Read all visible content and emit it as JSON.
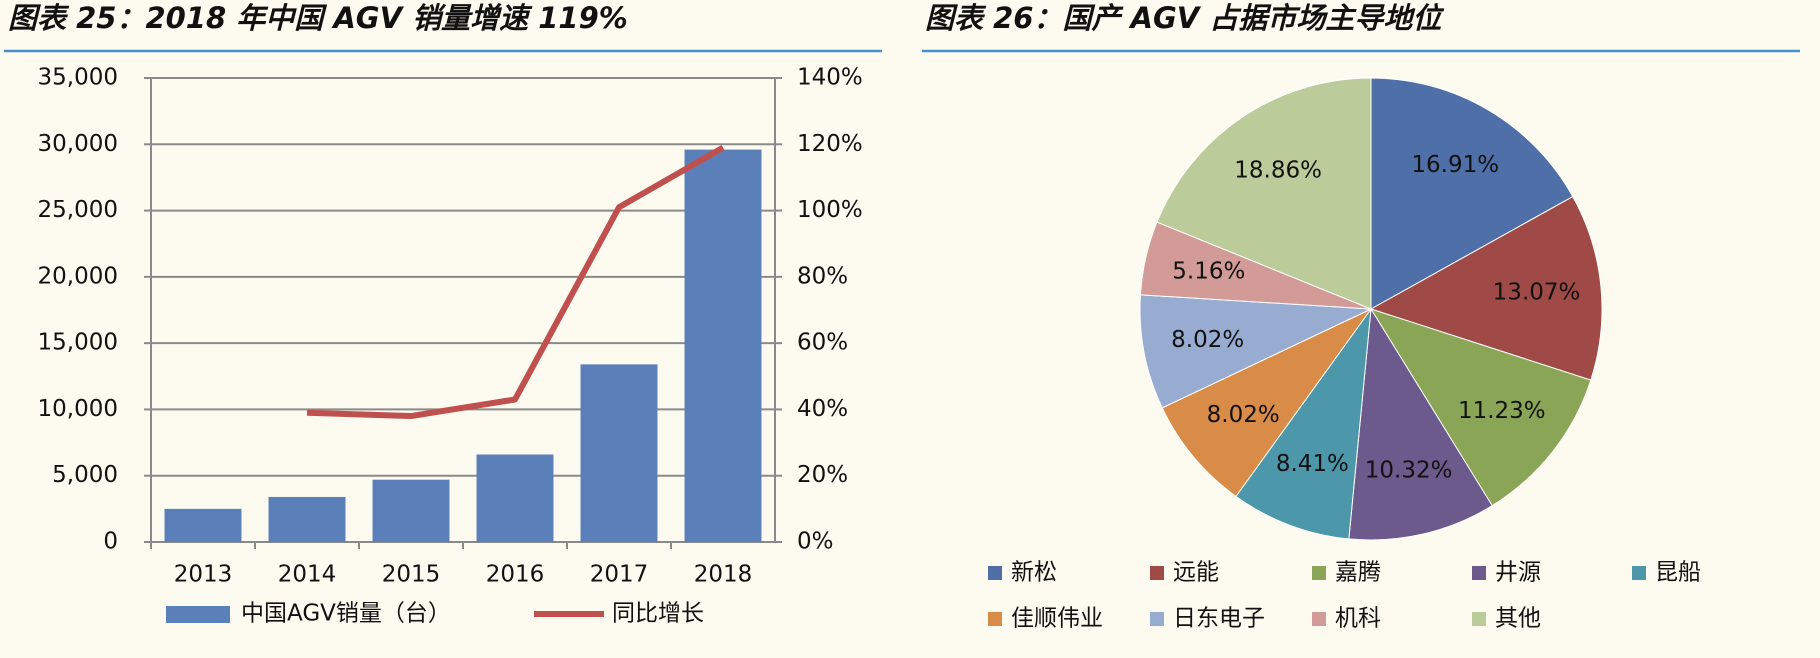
{
  "chart_data": [
    {
      "type": "bar_line",
      "title": "图表 25：2018 年中国 AGV 销量增速 119%",
      "categories": [
        "2013",
        "2014",
        "2015",
        "2016",
        "2017",
        "2018"
      ],
      "series": [
        {
          "name": "中国AGV销量（台）",
          "color": "#5b80b9",
          "type": "bar",
          "values": [
            2500,
            3400,
            4700,
            6600,
            13400,
            29600
          ]
        },
        {
          "name": "同比增长",
          "color": "#c0504d",
          "type": "line",
          "axis": "y2",
          "values": [
            null,
            39,
            38,
            43,
            101,
            119
          ]
        }
      ],
      "ylim": [
        0,
        35000
      ],
      "yticks": [
        0,
        {
          "value": 5000,
          "label": "5,000"
        },
        {
          "value": 10000,
          "label": "10,000"
        },
        {
          "value": 15000,
          "label": "15,000"
        },
        {
          "value": 20000,
          "label": "20,000"
        },
        {
          "value": 25000,
          "label": "25,000"
        },
        {
          "value": 30000,
          "label": "30,000"
        },
        {
          "value": 35000,
          "label": "35,000"
        }
      ],
      "y2lim": [
        0,
        140
      ],
      "y2ticks": [
        {
          "value": 0,
          "label": "0%"
        },
        {
          "value": 20,
          "label": "20%"
        },
        {
          "value": 40,
          "label": "40%"
        },
        {
          "value": 60,
          "label": "60%"
        },
        {
          "value": 80,
          "label": "80%"
        },
        {
          "value": 100,
          "label": "100%"
        },
        {
          "value": 120,
          "label": "120%"
        },
        {
          "value": 140,
          "label": "140%"
        }
      ],
      "grid": true,
      "legend": "bottom"
    },
    {
      "type": "pie",
      "title": "图表 26：国产 AGV 占据市场主导地位",
      "categories": [
        "新松",
        "远能",
        "嘉腾",
        "井源",
        "昆船",
        "佳顺伟业",
        "日东电子",
        "机科",
        "其他"
      ],
      "values": [
        16.91,
        13.07,
        11.23,
        10.32,
        8.41,
        8.02,
        8.02,
        5.16,
        18.86
      ],
      "value_labels": [
        "16.91%",
        "13.07%",
        "11.23%",
        "10.32%",
        "8.41%",
        "8.02%",
        "8.02%",
        "5.16%",
        "18.86%"
      ],
      "colors": [
        "#4f6fa8",
        "#a04a47",
        "#8aa556",
        "#6c5a8c",
        "#4d97ab",
        "#d98b48",
        "#98abd1",
        "#d39b98",
        "#bccb9a"
      ],
      "legend": "bottom"
    }
  ]
}
